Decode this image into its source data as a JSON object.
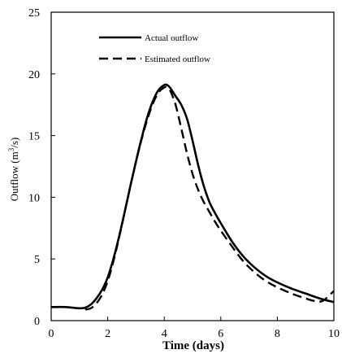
{
  "chart_data": {
    "type": "line",
    "xlabel": "Time (days)",
    "ylabel": "Outflow",
    "ylabel_unit_main": "m",
    "ylabel_unit_sup": "3",
    "ylabel_unit_tail": "/s",
    "xlim": [
      0,
      10
    ],
    "ylim": [
      0,
      25
    ],
    "x_ticks": [
      0,
      2,
      4,
      6,
      8,
      10
    ],
    "y_ticks": [
      0,
      5,
      10,
      15,
      20,
      25
    ],
    "grid": false,
    "legend_position": "top-left",
    "series": [
      {
        "name": "Actual outflow",
        "style": "solid",
        "color": "#000000",
        "x": [
          0,
          0.5,
          1.0,
          1.2,
          1.4,
          1.6,
          1.8,
          2.0,
          2.2,
          2.4,
          2.6,
          2.8,
          3.0,
          3.2,
          3.4,
          3.6,
          3.8,
          4.0,
          4.1,
          4.2,
          4.4,
          4.6,
          4.8,
          5.0,
          5.2,
          5.4,
          5.6,
          5.8,
          6.0,
          6.4,
          6.8,
          7.2,
          7.6,
          8.0,
          8.5,
          9.0,
          9.5,
          10.0
        ],
        "values": [
          1.1,
          1.1,
          1.0,
          1.05,
          1.3,
          1.8,
          2.5,
          3.5,
          5.0,
          6.8,
          8.8,
          10.9,
          12.9,
          14.8,
          16.5,
          17.8,
          18.7,
          19.1,
          19.1,
          18.9,
          18.2,
          17.5,
          16.4,
          14.6,
          12.6,
          10.9,
          9.6,
          8.7,
          7.9,
          6.4,
          5.2,
          4.3,
          3.6,
          3.1,
          2.6,
          2.2,
          1.8,
          1.5
        ]
      },
      {
        "name": "Estimated outflow",
        "style": "dashed",
        "color": "#000000",
        "x": [
          1.2,
          1.4,
          1.6,
          1.8,
          2.0,
          2.2,
          2.4,
          2.6,
          2.8,
          3.0,
          3.2,
          3.4,
          3.6,
          3.8,
          4.0,
          4.1,
          4.2,
          4.4,
          4.6,
          4.8,
          5.0,
          5.2,
          5.4,
          5.6,
          5.8,
          6.0,
          6.4,
          6.8,
          7.2,
          7.6,
          8.0,
          8.5,
          9.0,
          9.3,
          9.6,
          10.0
        ],
        "values": [
          0.9,
          1.0,
          1.4,
          2.1,
          3.2,
          4.8,
          6.7,
          8.8,
          10.9,
          12.9,
          14.7,
          16.3,
          17.6,
          18.5,
          18.9,
          18.9,
          18.7,
          17.5,
          15.6,
          13.6,
          11.9,
          10.6,
          9.6,
          8.8,
          8.0,
          7.3,
          6.0,
          4.8,
          3.9,
          3.2,
          2.7,
          2.2,
          1.8,
          1.6,
          1.6,
          2.4
        ]
      }
    ]
  }
}
